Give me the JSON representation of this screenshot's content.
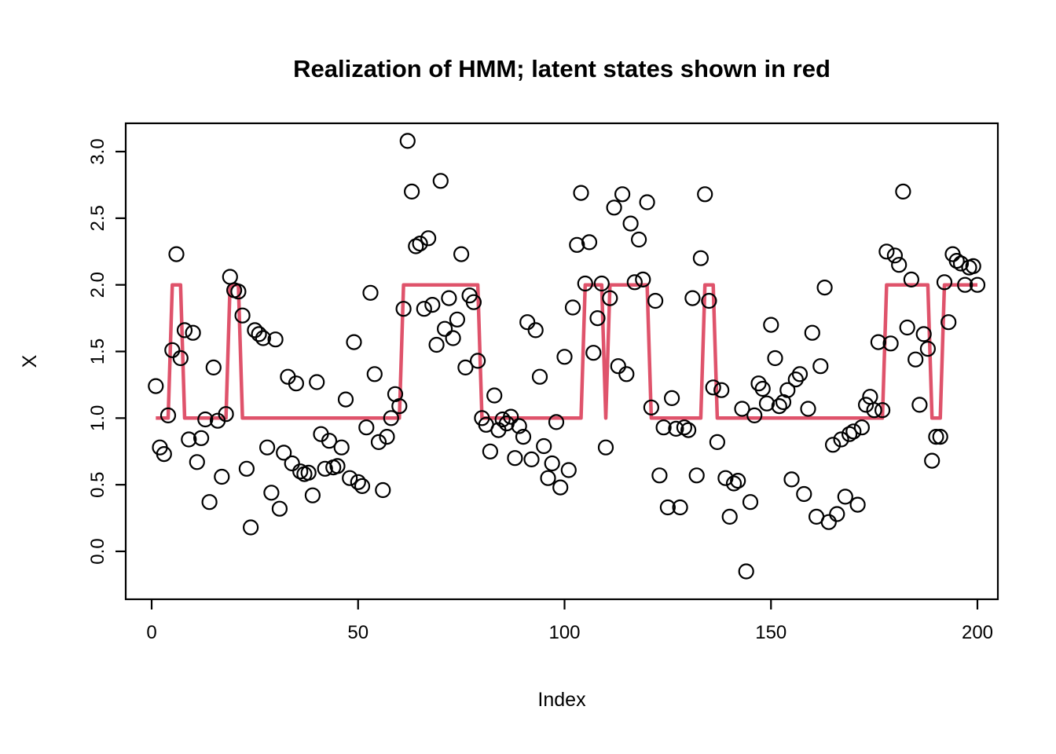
{
  "chart_data": {
    "type": "scatter",
    "title": "Realization of HMM; latent states shown in red",
    "xlabel": "Index",
    "ylabel": "X",
    "x_ticks": [
      0,
      50,
      100,
      150,
      200
    ],
    "y_ticks": [
      "0.0",
      "0.5",
      "1.0",
      "1.5",
      "2.0",
      "2.5",
      "3.0"
    ],
    "xlim": [
      -7,
      205
    ],
    "ylim": [
      -0.36,
      3.2
    ],
    "grid": "off",
    "legend": "none",
    "marker_color": "#000000",
    "state_line_color": "#DF536B",
    "series": [
      {
        "name": "observations",
        "type": "scatter",
        "marker": "open-circle",
        "points": [
          [
            1,
            1.24
          ],
          [
            2,
            0.78
          ],
          [
            3,
            0.73
          ],
          [
            4,
            1.02
          ],
          [
            5,
            1.51
          ],
          [
            6,
            2.23
          ],
          [
            7,
            1.45
          ],
          [
            8,
            1.66
          ],
          [
            9,
            0.84
          ],
          [
            10,
            1.64
          ],
          [
            11,
            0.67
          ],
          [
            12,
            0.85
          ],
          [
            13,
            0.99
          ],
          [
            14,
            0.37
          ],
          [
            15,
            1.38
          ],
          [
            16,
            0.98
          ],
          [
            17,
            0.56
          ],
          [
            18,
            1.03
          ],
          [
            19,
            2.06
          ],
          [
            20,
            1.96
          ],
          [
            21,
            1.95
          ],
          [
            22,
            1.77
          ],
          [
            23,
            0.62
          ],
          [
            24,
            0.18
          ],
          [
            25,
            1.66
          ],
          [
            26,
            1.63
          ],
          [
            27,
            1.6
          ],
          [
            28,
            0.78
          ],
          [
            29,
            0.44
          ],
          [
            30,
            1.59
          ],
          [
            31,
            0.32
          ],
          [
            32,
            0.74
          ],
          [
            33,
            1.31
          ],
          [
            34,
            0.66
          ],
          [
            35,
            1.26
          ],
          [
            36,
            0.6
          ],
          [
            37,
            0.58
          ],
          [
            38,
            0.59
          ],
          [
            39,
            0.42
          ],
          [
            40,
            1.27
          ],
          [
            41,
            0.88
          ],
          [
            42,
            0.62
          ],
          [
            43,
            0.83
          ],
          [
            44,
            0.63
          ],
          [
            45,
            0.64
          ],
          [
            46,
            0.78
          ],
          [
            47,
            1.14
          ],
          [
            48,
            0.55
          ],
          [
            49,
            1.57
          ],
          [
            50,
            0.52
          ],
          [
            51,
            0.49
          ],
          [
            52,
            0.93
          ],
          [
            53,
            1.94
          ],
          [
            54,
            1.33
          ],
          [
            55,
            0.82
          ],
          [
            56,
            0.46
          ],
          [
            57,
            0.86
          ],
          [
            58,
            1.0
          ],
          [
            59,
            1.18
          ],
          [
            60,
            1.09
          ],
          [
            61,
            1.82
          ],
          [
            62,
            3.08
          ],
          [
            63,
            2.7
          ],
          [
            64,
            2.29
          ],
          [
            65,
            2.31
          ],
          [
            66,
            1.82
          ],
          [
            67,
            2.35
          ],
          [
            68,
            1.85
          ],
          [
            69,
            1.55
          ],
          [
            70,
            2.78
          ],
          [
            71,
            1.67
          ],
          [
            72,
            1.9
          ],
          [
            73,
            1.6
          ],
          [
            74,
            1.74
          ],
          [
            75,
            2.23
          ],
          [
            76,
            1.38
          ],
          [
            77,
            1.92
          ],
          [
            78,
            1.87
          ],
          [
            79,
            1.43
          ],
          [
            80,
            1.0
          ],
          [
            81,
            0.95
          ],
          [
            82,
            0.75
          ],
          [
            83,
            1.17
          ],
          [
            84,
            0.91
          ],
          [
            85,
            0.99
          ],
          [
            86,
            0.96
          ],
          [
            87,
            1.01
          ],
          [
            88,
            0.7
          ],
          [
            89,
            0.94
          ],
          [
            90,
            0.86
          ],
          [
            91,
            1.72
          ],
          [
            92,
            0.69
          ],
          [
            93,
            1.66
          ],
          [
            94,
            1.31
          ],
          [
            95,
            0.79
          ],
          [
            96,
            0.55
          ],
          [
            97,
            0.66
          ],
          [
            98,
            0.97
          ],
          [
            99,
            0.48
          ],
          [
            100,
            1.46
          ],
          [
            101,
            0.61
          ],
          [
            102,
            1.83
          ],
          [
            103,
            2.3
          ],
          [
            104,
            2.69
          ],
          [
            105,
            2.01
          ],
          [
            106,
            2.32
          ],
          [
            107,
            1.49
          ],
          [
            108,
            1.75
          ],
          [
            109,
            2.01
          ],
          [
            110,
            0.78
          ],
          [
            111,
            1.9
          ],
          [
            112,
            2.58
          ],
          [
            113,
            1.39
          ],
          [
            114,
            2.68
          ],
          [
            115,
            1.33
          ],
          [
            116,
            2.46
          ],
          [
            117,
            2.02
          ],
          [
            118,
            2.34
          ],
          [
            119,
            2.04
          ],
          [
            120,
            2.62
          ],
          [
            121,
            1.08
          ],
          [
            122,
            1.88
          ],
          [
            123,
            0.57
          ],
          [
            124,
            0.93
          ],
          [
            125,
            0.33
          ],
          [
            126,
            1.15
          ],
          [
            127,
            0.92
          ],
          [
            128,
            0.33
          ],
          [
            129,
            0.93
          ],
          [
            130,
            0.91
          ],
          [
            131,
            1.9
          ],
          [
            132,
            0.57
          ],
          [
            133,
            2.2
          ],
          [
            134,
            2.68
          ],
          [
            135,
            1.88
          ],
          [
            136,
            1.23
          ],
          [
            137,
            0.82
          ],
          [
            138,
            1.21
          ],
          [
            139,
            0.55
          ],
          [
            140,
            0.26
          ],
          [
            141,
            0.51
          ],
          [
            142,
            0.53
          ],
          [
            143,
            1.07
          ],
          [
            144,
            -0.15
          ],
          [
            145,
            0.37
          ],
          [
            146,
            1.02
          ],
          [
            147,
            1.26
          ],
          [
            148,
            1.22
          ],
          [
            149,
            1.11
          ],
          [
            150,
            1.7
          ],
          [
            151,
            1.45
          ],
          [
            152,
            1.09
          ],
          [
            153,
            1.12
          ],
          [
            154,
            1.21
          ],
          [
            155,
            0.54
          ],
          [
            156,
            1.29
          ],
          [
            157,
            1.33
          ],
          [
            158,
            0.43
          ],
          [
            159,
            1.07
          ],
          [
            160,
            1.64
          ],
          [
            161,
            0.26
          ],
          [
            162,
            1.39
          ],
          [
            163,
            1.98
          ],
          [
            164,
            0.22
          ],
          [
            165,
            0.8
          ],
          [
            166,
            0.28
          ],
          [
            167,
            0.84
          ],
          [
            168,
            0.41
          ],
          [
            169,
            0.88
          ],
          [
            170,
            0.9
          ],
          [
            171,
            0.35
          ],
          [
            172,
            0.93
          ],
          [
            173,
            1.1
          ],
          [
            174,
            1.16
          ],
          [
            175,
            1.06
          ],
          [
            176,
            1.57
          ],
          [
            177,
            1.06
          ],
          [
            178,
            2.25
          ],
          [
            179,
            1.56
          ],
          [
            180,
            2.22
          ],
          [
            181,
            2.15
          ],
          [
            182,
            2.7
          ],
          [
            183,
            1.68
          ],
          [
            184,
            2.04
          ],
          [
            185,
            1.44
          ],
          [
            186,
            1.1
          ],
          [
            187,
            1.63
          ],
          [
            188,
            1.52
          ],
          [
            189,
            0.68
          ],
          [
            190,
            0.86
          ],
          [
            191,
            0.86
          ],
          [
            192,
            2.02
          ],
          [
            193,
            1.72
          ],
          [
            194,
            2.23
          ],
          [
            195,
            2.18
          ],
          [
            196,
            2.16
          ],
          [
            197,
            2.0
          ],
          [
            198,
            2.13
          ],
          [
            199,
            2.14
          ],
          [
            200,
            2.0
          ]
        ]
      },
      {
        "name": "latent states",
        "type": "step-line",
        "state_segments": [
          [
            1,
            4,
            1
          ],
          [
            5,
            7,
            2
          ],
          [
            8,
            18,
            1
          ],
          [
            19,
            21,
            2
          ],
          [
            22,
            60,
            1
          ],
          [
            61,
            79,
            2
          ],
          [
            80,
            104,
            1
          ],
          [
            105,
            109,
            2
          ],
          [
            110,
            110,
            1
          ],
          [
            111,
            120,
            2
          ],
          [
            121,
            133,
            1
          ],
          [
            134,
            136,
            2
          ],
          [
            137,
            177,
            1
          ],
          [
            178,
            188,
            2
          ],
          [
            189,
            191,
            1
          ],
          [
            192,
            200,
            2
          ]
        ]
      }
    ]
  }
}
